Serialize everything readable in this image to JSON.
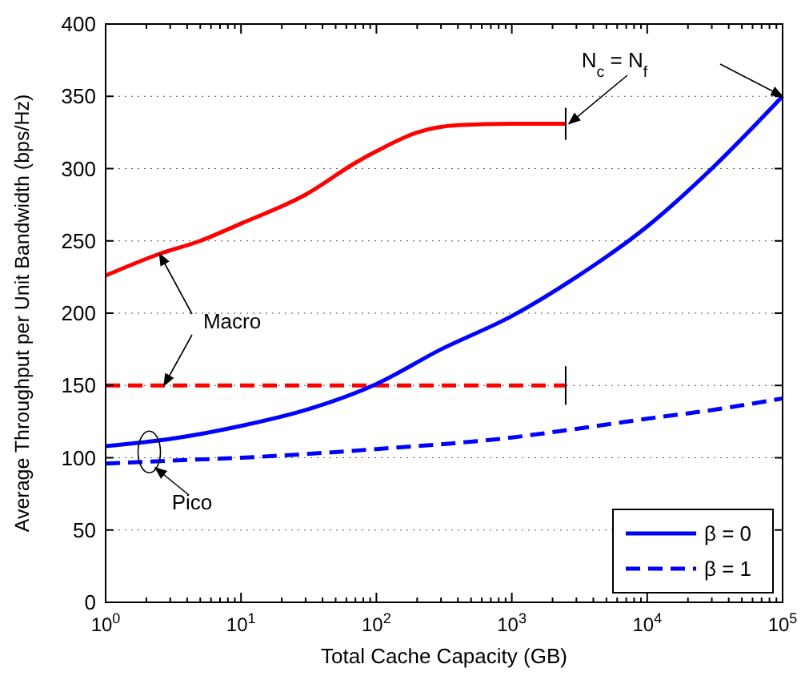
{
  "chart_data": {
    "type": "line",
    "xlabel": "Total Cache Capacity (GB)",
    "ylabel": "Average Throughput per Unit Bandwidth (bps/Hz)",
    "log": "x",
    "grid": "y",
    "legend": "bottom right",
    "xlim": [
      1,
      100000
    ],
    "ylim": [
      0,
      400
    ],
    "xticks": [
      {
        "value": 1,
        "label": "10$^{0}$"
      },
      {
        "value": 10,
        "label": "10$^{1}$"
      },
      {
        "value": 100,
        "label": "10$^{2}$"
      },
      {
        "value": 1000,
        "label": "10$^{3}$"
      },
      {
        "value": 10000,
        "label": "10$^{4}$"
      },
      {
        "value": 100000,
        "label": "10$^{5}$"
      }
    ],
    "yticks": [
      0,
      50,
      100,
      150,
      200,
      250,
      300,
      350,
      400
    ],
    "series": [
      {
        "color": "#ff0000",
        "line_style": "solid",
        "x": [
          1,
          2.5,
          5,
          10,
          30,
          70,
          100,
          200,
          400,
          1000,
          2500
        ],
        "values": [
          226,
          241,
          250,
          262,
          282,
          304,
          312,
          325,
          330,
          331,
          331
        ]
      },
      {
        "color": "#ff0000",
        "line_style": "dashed",
        "x": [
          1,
          2500
        ],
        "values": [
          150,
          150
        ]
      },
      {
        "name": "β = 0",
        "color": "#0000ff",
        "line_style": "solid",
        "x": [
          1,
          3,
          10,
          30,
          100,
          300,
          1000,
          3000,
          10000,
          30000,
          100000
        ],
        "values": [
          108,
          113,
          122,
          133,
          151,
          175,
          198,
          225,
          260,
          300,
          350
        ]
      },
      {
        "name": "β = 1",
        "color": "#0000ff",
        "line_style": "dashed",
        "x": [
          1,
          3,
          10,
          100,
          1000,
          3000,
          10000,
          30000,
          100000
        ],
        "values": [
          96,
          98,
          100,
          106,
          114,
          120,
          127,
          133,
          141
        ]
      }
    ],
    "annotations": [
      "Macro",
      "Pico",
      "N$_{c}$ = N$_{f}$"
    ]
  }
}
